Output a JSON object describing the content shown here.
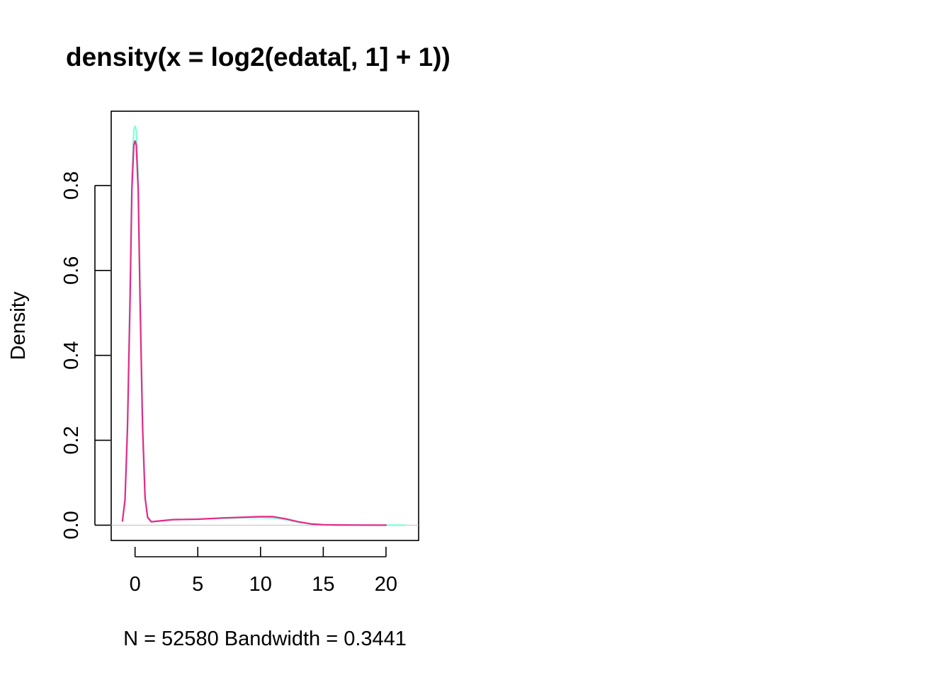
{
  "chart_data": {
    "type": "line",
    "title": "density(x = log2(edata[, 1] + 1))",
    "xlabel": "N = 52580   Bandwidth = 0.3441",
    "ylabel": "Density",
    "xlim": [
      -1.9,
      22.6
    ],
    "ylim": [
      -0.036,
      0.975
    ],
    "x_ticks": [
      0,
      5,
      10,
      15,
      20
    ],
    "x_tick_labels": [
      "0",
      "5",
      "10",
      "15",
      "20"
    ],
    "y_ticks": [
      0.0,
      0.2,
      0.4,
      0.6,
      0.8
    ],
    "y_tick_labels": [
      "0.0",
      "0.2",
      "0.4",
      "0.6",
      "0.8"
    ],
    "grid": false,
    "reference_line_y": 0,
    "series": [
      {
        "color": "#7FFFD4",
        "x": [
          -1.0,
          -0.8,
          -0.6,
          -0.4,
          -0.25,
          -0.1,
          0.0,
          0.1,
          0.25,
          0.4,
          0.6,
          0.8,
          1.0,
          1.3,
          2.0,
          3.0,
          5.0,
          7.0,
          9.0,
          10.0,
          11.0,
          12.0,
          13.0,
          14.0,
          15.0,
          16.0,
          18.0,
          20.0,
          21.5
        ],
        "y": [
          0.01,
          0.06,
          0.24,
          0.55,
          0.82,
          0.93,
          0.94,
          0.93,
          0.82,
          0.55,
          0.24,
          0.07,
          0.02,
          0.008,
          0.01,
          0.013,
          0.014,
          0.016,
          0.018,
          0.018,
          0.017,
          0.013,
          0.007,
          0.003,
          0.001,
          0.0005,
          0.0002,
          0.0001,
          0.0
        ]
      },
      {
        "color": "#E7298A",
        "x": [
          -1.0,
          -0.8,
          -0.6,
          -0.4,
          -0.25,
          -0.1,
          0.0,
          0.1,
          0.25,
          0.4,
          0.6,
          0.8,
          1.0,
          1.3,
          2.0,
          3.0,
          5.0,
          7.0,
          9.0,
          10.0,
          11.0,
          12.0,
          13.0,
          14.0,
          15.0,
          16.0,
          18.0,
          20.0
        ],
        "y": [
          0.01,
          0.06,
          0.23,
          0.53,
          0.79,
          0.895,
          0.905,
          0.895,
          0.79,
          0.53,
          0.23,
          0.065,
          0.018,
          0.008,
          0.01,
          0.013,
          0.014,
          0.017,
          0.019,
          0.02,
          0.02,
          0.015,
          0.008,
          0.003,
          0.001,
          0.0005,
          0.0002,
          0.0001
        ]
      }
    ]
  }
}
